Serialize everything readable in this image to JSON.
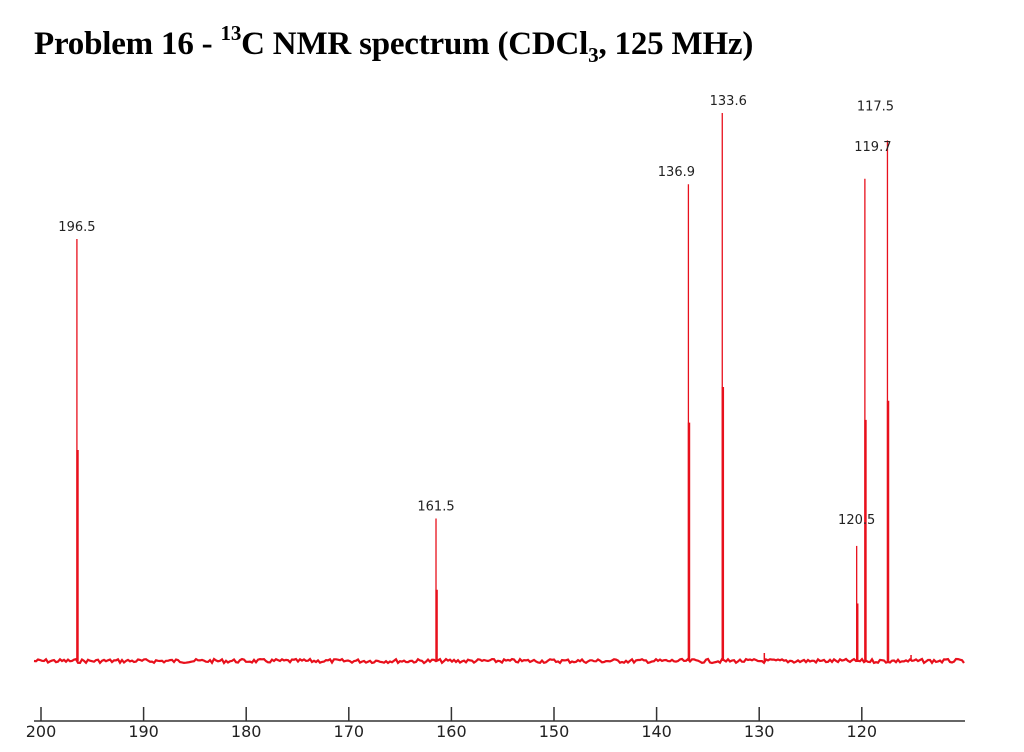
{
  "title": {
    "prefix": "Problem 16 - ",
    "isotope": "13",
    "main": "C NMR spectrum (CDCl",
    "sub": "3",
    "suffix": ", 125 MHz)"
  },
  "colors": {
    "spectrum": "#e8101c",
    "axis": "#333333",
    "text": "#222222"
  },
  "chart_data": {
    "type": "line",
    "title": "Problem 16 - 13C NMR spectrum (CDCl3, 125 MHz)",
    "xlabel": "",
    "ylabel": "",
    "x_axis": {
      "reversed": true,
      "range": [
        200,
        110
      ],
      "ticks": [
        200,
        190,
        180,
        170,
        160,
        150,
        140,
        130,
        120
      ]
    },
    "grid": false,
    "legend": "none",
    "peaks": [
      {
        "ppm": 196.5,
        "label": "196.5",
        "relative_height": 0.77
      },
      {
        "ppm": 161.5,
        "label": "161.5",
        "relative_height": 0.26
      },
      {
        "ppm": 136.9,
        "label": "136.9",
        "relative_height": 0.87
      },
      {
        "ppm": 133.6,
        "label": "133.6",
        "relative_height": 1.0
      },
      {
        "ppm": 120.5,
        "label": "120.5",
        "relative_height": 0.21
      },
      {
        "ppm": 119.7,
        "label": "119.7",
        "relative_height": 0.88
      },
      {
        "ppm": 117.5,
        "label": "117.5",
        "relative_height": 0.95
      }
    ]
  }
}
